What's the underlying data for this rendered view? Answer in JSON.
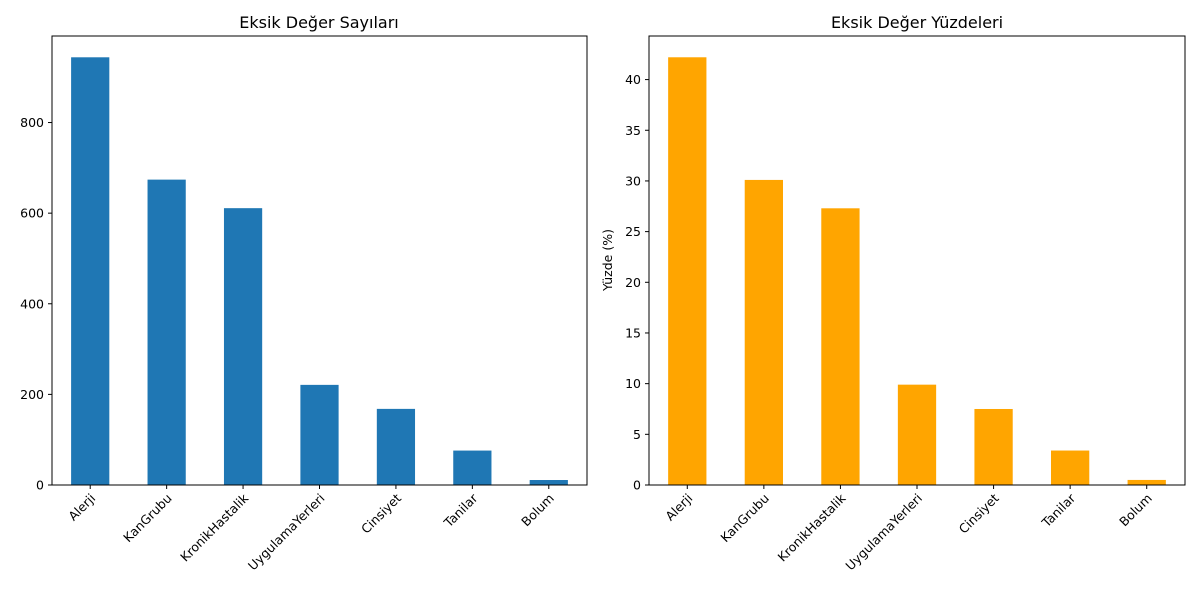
{
  "chart_data": [
    {
      "type": "bar",
      "title": "Eksik Değer Sayıları",
      "xlabel": "",
      "ylabel": "",
      "categories": [
        "Alerji",
        "KanGrubu",
        "KronikHastalik",
        "UygulamaYerleri",
        "Cinsiyet",
        "Tanilar",
        "Bolum"
      ],
      "values": [
        944,
        674,
        611,
        221,
        168,
        76,
        11
      ],
      "ylim": [
        0,
        991
      ],
      "yticks": [
        0,
        200,
        400,
        600,
        800
      ],
      "color": "#1f77b4"
    },
    {
      "type": "bar",
      "title": "Eksik Değer Yüzdeleri",
      "xlabel": "",
      "ylabel": "Yüzde (%)",
      "categories": [
        "Alerji",
        "KanGrubu",
        "KronikHastalik",
        "UygulamaYerleri",
        "Cinsiyet",
        "Tanilar",
        "Bolum"
      ],
      "values": [
        42.2,
        30.1,
        27.3,
        9.9,
        7.5,
        3.4,
        0.5
      ],
      "ylim": [
        0,
        44.3
      ],
      "yticks": [
        0,
        5,
        10,
        15,
        20,
        25,
        30,
        35,
        40
      ],
      "color": "#ffa500"
    }
  ]
}
